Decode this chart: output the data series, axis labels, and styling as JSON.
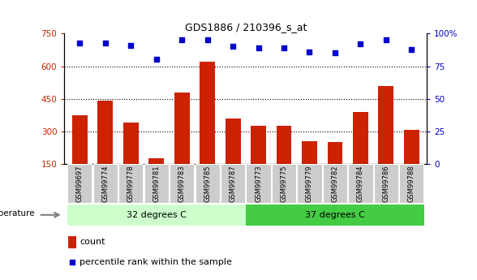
{
  "title": "GDS1886 / 210396_s_at",
  "categories": [
    "GSM99697",
    "GSM99774",
    "GSM99778",
    "GSM99781",
    "GSM99783",
    "GSM99785",
    "GSM99787",
    "GSM99773",
    "GSM99775",
    "GSM99779",
    "GSM99782",
    "GSM99784",
    "GSM99786",
    "GSM99788"
  ],
  "counts": [
    375,
    440,
    340,
    175,
    480,
    620,
    360,
    325,
    325,
    255,
    250,
    390,
    510,
    305
  ],
  "percentiles": [
    93,
    93,
    91,
    80,
    95,
    95,
    90,
    89,
    89,
    86,
    85,
    92,
    95,
    88
  ],
  "group1_label": "32 degrees C",
  "group2_label": "37 degrees C",
  "group1_count": 7,
  "group2_count": 7,
  "bar_color": "#cc2200",
  "dot_color": "#0000cc",
  "group1_bg": "#ccffcc",
  "group2_bg": "#44cc44",
  "xlabel_bg": "#cccccc",
  "ylim_left": [
    150,
    750
  ],
  "ylim_right": [
    0,
    100
  ],
  "yticks_left": [
    150,
    300,
    450,
    600,
    750
  ],
  "yticks_right": [
    0,
    25,
    50,
    75,
    100
  ],
  "grid_vals": [
    300,
    450,
    600
  ],
  "temperature_label": "temperature",
  "legend_count_label": "count",
  "legend_pct_label": "percentile rank within the sample"
}
